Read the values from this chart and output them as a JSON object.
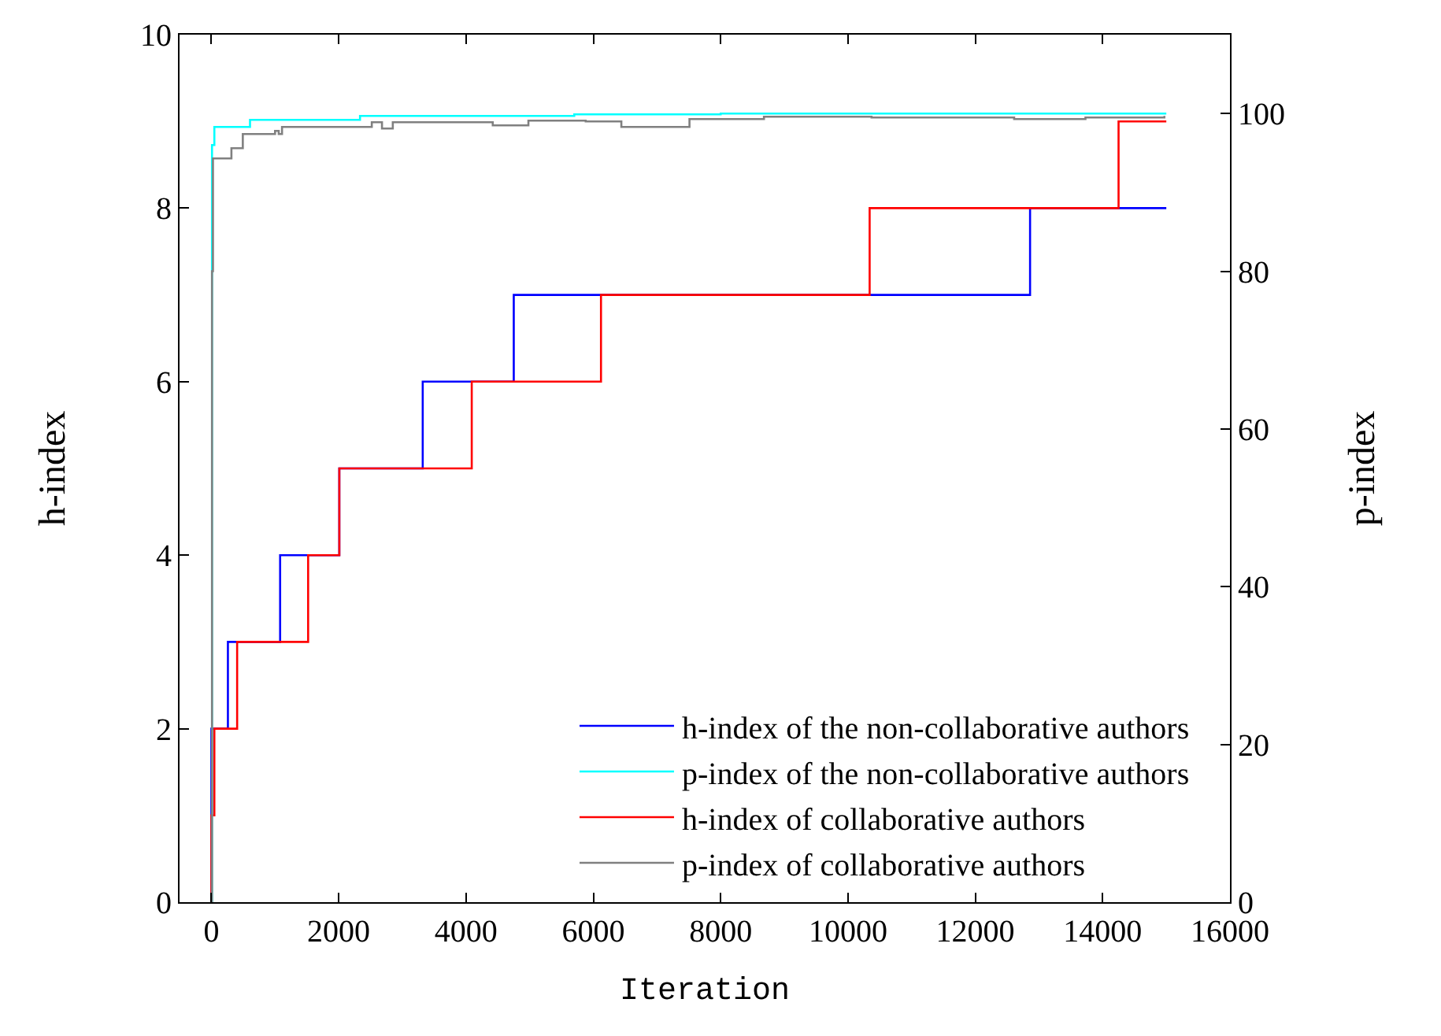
{
  "chart_data": {
    "type": "step",
    "xlabel": "Iteration",
    "ylabel": "h-index",
    "y2label": "p-index",
    "xlim": [
      -500,
      16000
    ],
    "xticks": [
      0,
      2000,
      4000,
      6000,
      8000,
      10000,
      12000,
      14000,
      16000
    ],
    "ylim": [
      0,
      10
    ],
    "yticks": [
      0,
      2,
      4,
      6,
      8,
      10
    ],
    "y2lim": [
      0,
      110
    ],
    "y2ticks": [
      0,
      20,
      40,
      60,
      80,
      100
    ],
    "legend": "bottom right",
    "marker": "none",
    "line_style": "solid",
    "series": [
      {
        "name": "h-index of the non-collaborative authors",
        "color": "#0000ff",
        "x": [
          0,
          0,
          260,
          1080,
          2010,
          3320,
          4750,
          12860,
          15000
        ],
        "values": [
          0,
          2,
          3,
          4,
          5,
          6,
          7,
          8,
          8
        ]
      },
      {
        "name": "p-index of the non-collaborative authors",
        "color": "#00ffff",
        "axis": "y2",
        "x": [
          0,
          10,
          47,
          607,
          2335,
          5700,
          8000,
          15000
        ],
        "values": [
          0,
          96,
          98.3,
          99.2,
          99.7,
          99.9,
          100,
          100
        ]
      },
      {
        "name": "h-index of collaborative authors",
        "color": "#ff0000",
        "x": [
          0,
          0,
          47,
          405,
          1520,
          2010,
          4090,
          6120,
          10340,
          14250,
          15000
        ],
        "values": [
          0,
          1,
          2,
          3,
          4,
          5,
          6,
          7,
          8,
          9,
          9
        ]
      },
      {
        "name": "p-index of collaborative authors",
        "color": "#808080",
        "axis": "y2",
        "x": [
          0,
          10,
          25,
          315,
          494,
          1000,
          1058,
          1110,
          2520,
          2680,
          2850,
          4420,
          4980,
          5880,
          6440,
          7110,
          7510,
          8680,
          10370,
          12610,
          13730,
          14970
        ],
        "values": [
          0,
          80,
          94.3,
          95.6,
          97.4,
          97.8,
          97.4,
          98.3,
          98.9,
          98.1,
          98.9,
          98.5,
          99.1,
          99.0,
          98.3,
          98.3,
          99.3,
          99.6,
          99.5,
          99.3,
          99.5,
          99.7
        ]
      }
    ]
  }
}
